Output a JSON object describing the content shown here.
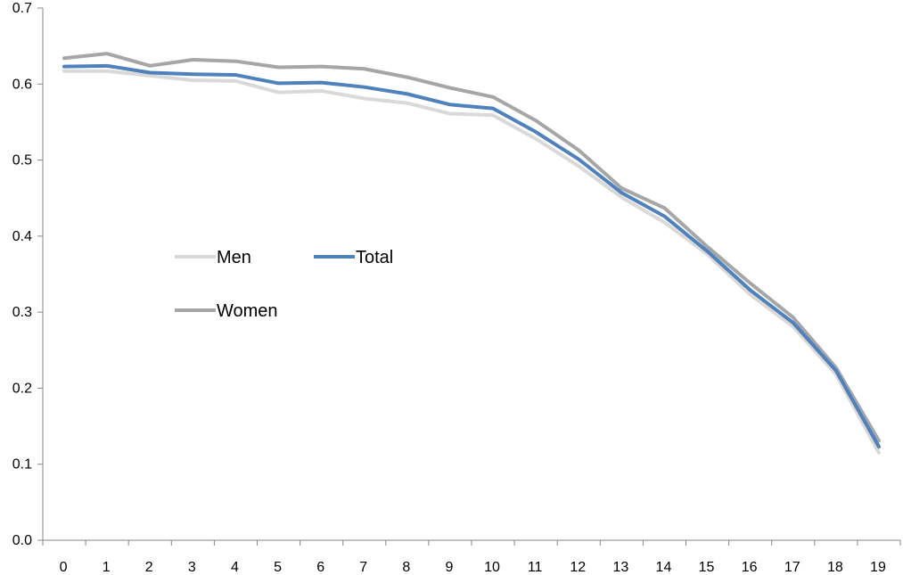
{
  "chart_data": {
    "type": "line",
    "title": "",
    "xlabel": "",
    "ylabel": "",
    "x": [
      0,
      1,
      2,
      3,
      4,
      5,
      6,
      7,
      8,
      9,
      10,
      11,
      12,
      13,
      14,
      15,
      16,
      17,
      18,
      19
    ],
    "ylim": [
      0,
      0.7
    ],
    "yticks": [
      "0.0",
      "0.1",
      "0.2",
      "0.3",
      "0.4",
      "0.5",
      "0.6",
      "0.7"
    ],
    "grid": false,
    "legend_position": "center-left",
    "series": [
      {
        "name": "Men",
        "color": "#d9d9d9",
        "values": [
          0.617,
          0.617,
          0.611,
          0.605,
          0.604,
          0.589,
          0.591,
          0.581,
          0.575,
          0.561,
          0.559,
          0.528,
          0.492,
          0.451,
          0.418,
          0.376,
          0.323,
          0.281,
          0.218,
          0.115
        ]
      },
      {
        "name": "Total",
        "color": "#4f81bd",
        "values": [
          0.623,
          0.624,
          0.615,
          0.613,
          0.612,
          0.601,
          0.602,
          0.596,
          0.587,
          0.573,
          0.568,
          0.537,
          0.501,
          0.457,
          0.426,
          0.38,
          0.329,
          0.286,
          0.223,
          0.123
        ]
      },
      {
        "name": "Women",
        "color": "#a6a6a6",
        "values": [
          0.634,
          0.64,
          0.624,
          0.632,
          0.63,
          0.622,
          0.623,
          0.62,
          0.609,
          0.595,
          0.583,
          0.552,
          0.513,
          0.463,
          0.437,
          0.386,
          0.338,
          0.293,
          0.227,
          0.131
        ]
      }
    ]
  }
}
